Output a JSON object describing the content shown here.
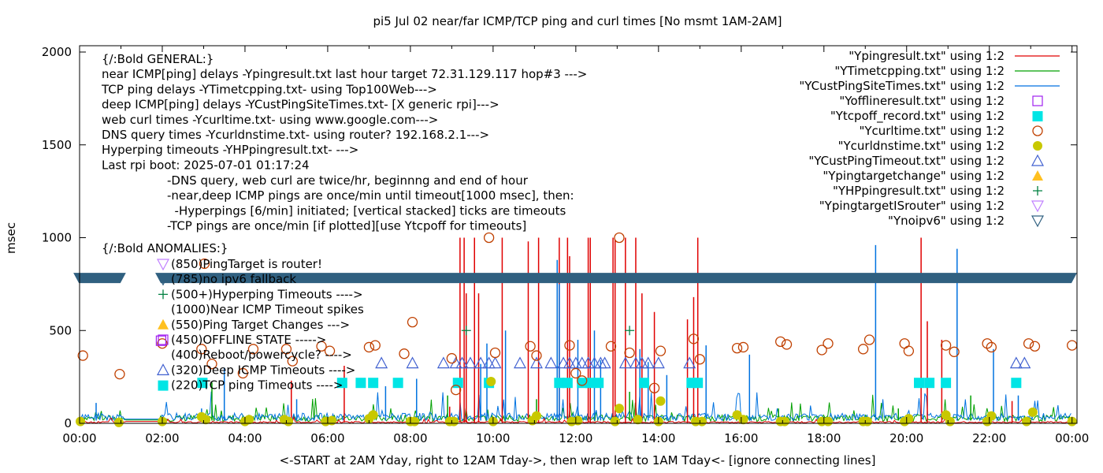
{
  "chart_data": {
    "type": "line",
    "title": "pi5 Jul 02  near/far ICMP/TCP ping and curl times [No msmt 1AM-2AM]",
    "xlabel": "<-START at 2AM Yday, right to 12AM Tday->, then wrap left to 1AM Tday<- [ignore connecting lines]",
    "ylabel": "msec",
    "xlim_hours": [
      0,
      24.12
    ],
    "ylim": [
      0,
      2030
    ],
    "yticks": [
      0,
      500,
      1000,
      1500,
      2000
    ],
    "xticks": [
      {
        "h": 0,
        "label": "00:00"
      },
      {
        "h": 2,
        "label": "02:00"
      },
      {
        "h": 4,
        "label": "04:00"
      },
      {
        "h": 6,
        "label": "06:00"
      },
      {
        "h": 8,
        "label": "08:00"
      },
      {
        "h": 10,
        "label": "10:00"
      },
      {
        "h": 12,
        "label": "12:00"
      },
      {
        "h": 14,
        "label": "14:00"
      },
      {
        "h": 16,
        "label": "16:00"
      },
      {
        "h": 18,
        "label": "18:00"
      },
      {
        "h": 20,
        "label": "20:00"
      },
      {
        "h": 22,
        "label": "22:00"
      },
      {
        "h": 24,
        "label": "00:00"
      }
    ],
    "grid": false,
    "legend_position": "top-right",
    "legend": [
      {
        "label": "\"Ypingresult.txt\" using 1:2",
        "kind": "line",
        "color": "#e00000"
      },
      {
        "label": "\"YTimetcpping.txt\" using 1:2",
        "kind": "line",
        "color": "#00a000"
      },
      {
        "label": "\"YCustPingSiteTimes.txt\" using 1:2",
        "kind": "line",
        "color": "#0072e0"
      },
      {
        "label": "\"Yofflineresult.txt\" using 1:2",
        "kind": "open-square",
        "color": "#a020f0"
      },
      {
        "label": "\"Ytcpoff_record.txt\" using 1:2",
        "kind": "filled-square",
        "color": "#00e5e5"
      },
      {
        "label": "\"Ycurltime.txt\" using 1:2",
        "kind": "open-circle",
        "color": "#c04000"
      },
      {
        "label": "\"Ycurldnstime.txt\" using 1:2",
        "kind": "filled-circle",
        "color": "#c8c800"
      },
      {
        "label": "\"YCustPingTimeout.txt\" using 1:2",
        "kind": "open-triangle-up",
        "color": "#4060d0"
      },
      {
        "label": "\"Ypingtargetchange\" using 1:2",
        "kind": "filled-triangle-up",
        "color": "#ffc020"
      },
      {
        "label": "\"YHPpingresult.txt\" using 1:2",
        "kind": "plus",
        "color": "#008040"
      },
      {
        "label": "\"YpingtargetISrouter\" using 1:2",
        "kind": "open-triangle-down",
        "color": "#c080ff"
      },
      {
        "label": "\"Ynoipv6\" using 1:2",
        "kind": "open-triangle-down",
        "color": "#306080"
      }
    ],
    "annotations": {
      "general": [
        "{/:Bold GENERAL:}",
        "near ICMP[ping] delays -Ypingresult.txt last hour target 72.31.129.117 hop#3 --->",
        "TCP ping delays -YTimetcpping.txt- using Top100Web--->",
        "deep ICMP[ping] delays -YCustPingSiteTimes.txt- [X generic rpi]--->",
        "web curl times -Ycurltime.txt- using www.google.com--->",
        "DNS query times -Ycurldnstime.txt- using router? 192.168.2.1--->",
        "Hyperping timeouts -YHPpingresult.txt- --->",
        "Last rpi boot: 2025-07-01 01:17:24"
      ],
      "notes": [
        "-DNS query, web curl are twice/hr, beginnng and end of hour",
        "-near,deep ICMP pings are once/min until timeout[1000 msec], then:",
        "  -Hyperpings [6/min] initiated; [vertical stacked] ticks are timeouts",
        "-TCP pings are once/min [if plotted][use Ytcpoff for timeouts]"
      ],
      "anomalies_title": "{/:Bold ANOMALIES:}",
      "anomalies": [
        {
          "marker": "open-triangle-down",
          "color": "#c080ff",
          "text": "(850)PingTarget is router!"
        },
        {
          "marker": "open-triangle-down",
          "color": "#306080",
          "text": "(785)no ipv6 fallback"
        },
        {
          "marker": "plus",
          "color": "#008040",
          "text": "(500+)Hyperping Timeouts ---->"
        },
        {
          "marker": "none",
          "color": "#000000",
          "text": "(1000)Near ICMP Timeout spikes"
        },
        {
          "marker": "filled-triangle-up",
          "color": "#ffc020",
          "text": "(550)Ping Target Changes --->"
        },
        {
          "marker": "open-square",
          "color": "#a020f0",
          "text": "(450)OFFLINE STATE ----->"
        },
        {
          "marker": "none",
          "color": "#000000",
          "text": "(400)Reboot/powercycle? ---->"
        },
        {
          "marker": "open-triangle-up",
          "color": "#4060d0",
          "text": "(320)Deep ICMP Timeouts ---->"
        },
        {
          "marker": "filled-square",
          "color": "#00e5e5",
          "text": "(220)TCP ping Timeouts ---->"
        }
      ]
    },
    "series": {
      "noipv6_band": {
        "y": 785,
        "ranges": [
          [
            -0.15,
            1.12
          ],
          [
            1.83,
            24.12
          ]
        ]
      },
      "near_icmp_spikes": [
        {
          "x": 2.83,
          "y": 0
        },
        {
          "x": 5.12,
          "y": 230
        },
        {
          "x": 6.4,
          "y": 310
        },
        {
          "x": 8.95,
          "y": 90
        },
        {
          "x": 9.2,
          "y": 1000
        },
        {
          "x": 9.3,
          "y": 1000
        },
        {
          "x": 9.35,
          "y": 700
        },
        {
          "x": 9.55,
          "y": 1000
        },
        {
          "x": 9.65,
          "y": 700
        },
        {
          "x": 10.22,
          "y": 1000
        },
        {
          "x": 10.85,
          "y": 980
        },
        {
          "x": 11.1,
          "y": 1000
        },
        {
          "x": 11.6,
          "y": 1000
        },
        {
          "x": 11.8,
          "y": 1000
        },
        {
          "x": 11.85,
          "y": 900
        },
        {
          "x": 12.3,
          "y": 1000
        },
        {
          "x": 12.35,
          "y": 1000
        },
        {
          "x": 12.9,
          "y": 1000
        },
        {
          "x": 12.95,
          "y": 990
        },
        {
          "x": 13.2,
          "y": 1000
        },
        {
          "x": 13.45,
          "y": 1000
        },
        {
          "x": 13.6,
          "y": 700
        },
        {
          "x": 13.9,
          "y": 600
        },
        {
          "x": 14.7,
          "y": 560
        },
        {
          "x": 14.85,
          "y": 680
        },
        {
          "x": 14.95,
          "y": 1000
        },
        {
          "x": 20.35,
          "y": 1000
        },
        {
          "x": 20.5,
          "y": 550
        },
        {
          "x": 20.85,
          "y": 450
        },
        {
          "x": 22.55,
          "y": 120
        }
      ],
      "deep_icmp_spikes": [
        {
          "x": 0.4,
          "y": 110
        },
        {
          "x": 2.95,
          "y": 80
        },
        {
          "x": 3.5,
          "y": 300
        },
        {
          "x": 5.25,
          "y": 130
        },
        {
          "x": 7.4,
          "y": 200
        },
        {
          "x": 8.15,
          "y": 240
        },
        {
          "x": 9.7,
          "y": 320
        },
        {
          "x": 9.85,
          "y": 430
        },
        {
          "x": 10.3,
          "y": 500
        },
        {
          "x": 11.55,
          "y": 880
        },
        {
          "x": 11.6,
          "y": 750
        },
        {
          "x": 12.05,
          "y": 450
        },
        {
          "x": 12.45,
          "y": 500
        },
        {
          "x": 12.6,
          "y": 340
        },
        {
          "x": 13.55,
          "y": 400
        },
        {
          "x": 13.75,
          "y": 330
        },
        {
          "x": 14.2,
          "y": 260
        },
        {
          "x": 15.15,
          "y": 420
        },
        {
          "x": 16.2,
          "y": 370
        },
        {
          "x": 19.25,
          "y": 960
        },
        {
          "x": 21.22,
          "y": 940
        },
        {
          "x": 22.1,
          "y": 400
        },
        {
          "x": 22.7,
          "y": 150
        }
      ],
      "tcp_spikes": [
        {
          "x": 3.2,
          "y": 220
        },
        {
          "x": 8.9,
          "y": 150
        },
        {
          "x": 11.05,
          "y": 130
        },
        {
          "x": 13.3,
          "y": 170
        },
        {
          "x": 16.9,
          "y": 80
        },
        {
          "x": 19.8,
          "y": 80
        },
        {
          "x": 21.55,
          "y": 150
        }
      ],
      "yofflineresult": [
        {
          "x": 1.97,
          "y": 445
        }
      ],
      "ytcpoff_record": [
        {
          "x": 2.97,
          "y": 220
        },
        {
          "x": 6.35,
          "y": 220
        },
        {
          "x": 6.8,
          "y": 220
        },
        {
          "x": 7.1,
          "y": 220
        },
        {
          "x": 7.7,
          "y": 220
        },
        {
          "x": 9.15,
          "y": 220
        },
        {
          "x": 9.9,
          "y": 220
        },
        {
          "x": 11.6,
          "y": 220
        },
        {
          "x": 11.8,
          "y": 220
        },
        {
          "x": 12.15,
          "y": 220
        },
        {
          "x": 12.35,
          "y": 220
        },
        {
          "x": 12.55,
          "y": 220
        },
        {
          "x": 13.65,
          "y": 220
        },
        {
          "x": 14.8,
          "y": 220
        },
        {
          "x": 14.95,
          "y": 220
        },
        {
          "x": 20.3,
          "y": 220
        },
        {
          "x": 20.55,
          "y": 220
        },
        {
          "x": 20.95,
          "y": 220
        },
        {
          "x": 22.65,
          "y": 220
        }
      ],
      "ycurltime": [
        {
          "x": 0.08,
          "y": 365
        },
        {
          "x": 0.97,
          "y": 265
        },
        {
          "x": 2.0,
          "y": 430
        },
        {
          "x": 2.95,
          "y": 400
        },
        {
          "x": 3.02,
          "y": 860
        },
        {
          "x": 3.2,
          "y": 320
        },
        {
          "x": 3.95,
          "y": 270
        },
        {
          "x": 4.2,
          "y": 400
        },
        {
          "x": 5.0,
          "y": 400
        },
        {
          "x": 5.15,
          "y": 335
        },
        {
          "x": 5.85,
          "y": 415
        },
        {
          "x": 6.05,
          "y": 390
        },
        {
          "x": 7.0,
          "y": 410
        },
        {
          "x": 7.15,
          "y": 420
        },
        {
          "x": 7.85,
          "y": 375
        },
        {
          "x": 8.05,
          "y": 545
        },
        {
          "x": 9.0,
          "y": 350
        },
        {
          "x": 9.1,
          "y": 180
        },
        {
          "x": 9.9,
          "y": 1000
        },
        {
          "x": 10.05,
          "y": 380
        },
        {
          "x": 10.9,
          "y": 415
        },
        {
          "x": 11.05,
          "y": 365
        },
        {
          "x": 11.85,
          "y": 420
        },
        {
          "x": 12.0,
          "y": 270
        },
        {
          "x": 12.15,
          "y": 230
        },
        {
          "x": 12.85,
          "y": 415
        },
        {
          "x": 13.05,
          "y": 1000
        },
        {
          "x": 13.3,
          "y": 380
        },
        {
          "x": 13.9,
          "y": 190
        },
        {
          "x": 14.05,
          "y": 390
        },
        {
          "x": 14.85,
          "y": 455
        },
        {
          "x": 15.0,
          "y": 345
        },
        {
          "x": 15.9,
          "y": 405
        },
        {
          "x": 16.05,
          "y": 410
        },
        {
          "x": 16.95,
          "y": 440
        },
        {
          "x": 17.1,
          "y": 425
        },
        {
          "x": 17.95,
          "y": 395
        },
        {
          "x": 18.1,
          "y": 430
        },
        {
          "x": 18.95,
          "y": 400
        },
        {
          "x": 19.1,
          "y": 450
        },
        {
          "x": 19.95,
          "y": 430
        },
        {
          "x": 20.05,
          "y": 390
        },
        {
          "x": 20.95,
          "y": 420
        },
        {
          "x": 21.15,
          "y": 385
        },
        {
          "x": 21.95,
          "y": 430
        },
        {
          "x": 22.05,
          "y": 410
        },
        {
          "x": 22.95,
          "y": 430
        },
        {
          "x": 23.1,
          "y": 415
        },
        {
          "x": 24.0,
          "y": 420
        }
      ],
      "ycurldnstime": [
        {
          "x": 0.02,
          "y": 10
        },
        {
          "x": 0.95,
          "y": 5
        },
        {
          "x": 2.0,
          "y": 10
        },
        {
          "x": 2.95,
          "y": 35
        },
        {
          "x": 3.05,
          "y": 20
        },
        {
          "x": 4.0,
          "y": 10
        },
        {
          "x": 4.1,
          "y": 20
        },
        {
          "x": 4.95,
          "y": 20
        },
        {
          "x": 5.05,
          "y": 10
        },
        {
          "x": 5.95,
          "y": 10
        },
        {
          "x": 6.1,
          "y": 15
        },
        {
          "x": 7.0,
          "y": 25
        },
        {
          "x": 7.1,
          "y": 45
        },
        {
          "x": 8.0,
          "y": 10
        },
        {
          "x": 8.1,
          "y": 10
        },
        {
          "x": 8.95,
          "y": 10
        },
        {
          "x": 9.05,
          "y": 10
        },
        {
          "x": 9.95,
          "y": 225
        },
        {
          "x": 10.0,
          "y": 10
        },
        {
          "x": 10.95,
          "y": 15
        },
        {
          "x": 11.05,
          "y": 40
        },
        {
          "x": 11.9,
          "y": 10
        },
        {
          "x": 12.05,
          "y": 15
        },
        {
          "x": 12.95,
          "y": 10
        },
        {
          "x": 13.05,
          "y": 80
        },
        {
          "x": 13.5,
          "y": 20
        },
        {
          "x": 14.0,
          "y": 10
        },
        {
          "x": 14.05,
          "y": 120
        },
        {
          "x": 14.9,
          "y": 10
        },
        {
          "x": 15.05,
          "y": 10
        },
        {
          "x": 15.9,
          "y": 45
        },
        {
          "x": 16.05,
          "y": 20
        },
        {
          "x": 16.95,
          "y": 10
        },
        {
          "x": 17.05,
          "y": 10
        },
        {
          "x": 17.95,
          "y": 10
        },
        {
          "x": 18.1,
          "y": 10
        },
        {
          "x": 18.95,
          "y": 10
        },
        {
          "x": 19.05,
          "y": 10
        },
        {
          "x": 19.95,
          "y": 10
        },
        {
          "x": 20.05,
          "y": 25
        },
        {
          "x": 20.95,
          "y": 45
        },
        {
          "x": 21.05,
          "y": 10
        },
        {
          "x": 21.95,
          "y": 10
        },
        {
          "x": 22.05,
          "y": 40
        },
        {
          "x": 22.9,
          "y": 10
        },
        {
          "x": 23.05,
          "y": 60
        },
        {
          "x": 24.0,
          "y": 10
        }
      ],
      "ycustpingtimeout": [
        {
          "x": 7.3,
          "y": 320
        },
        {
          "x": 8.05,
          "y": 320
        },
        {
          "x": 8.8,
          "y": 320
        },
        {
          "x": 9.1,
          "y": 320
        },
        {
          "x": 9.25,
          "y": 320
        },
        {
          "x": 9.45,
          "y": 320
        },
        {
          "x": 9.7,
          "y": 320
        },
        {
          "x": 9.9,
          "y": 320
        },
        {
          "x": 10.05,
          "y": 320
        },
        {
          "x": 10.65,
          "y": 320
        },
        {
          "x": 11.05,
          "y": 320
        },
        {
          "x": 11.4,
          "y": 320
        },
        {
          "x": 11.7,
          "y": 320
        },
        {
          "x": 11.85,
          "y": 320
        },
        {
          "x": 12.0,
          "y": 320
        },
        {
          "x": 12.15,
          "y": 320
        },
        {
          "x": 12.3,
          "y": 320
        },
        {
          "x": 12.45,
          "y": 320
        },
        {
          "x": 12.6,
          "y": 320
        },
        {
          "x": 12.7,
          "y": 320
        },
        {
          "x": 13.2,
          "y": 320
        },
        {
          "x": 13.45,
          "y": 320
        },
        {
          "x": 13.6,
          "y": 320
        },
        {
          "x": 13.75,
          "y": 320
        },
        {
          "x": 14.0,
          "y": 320
        },
        {
          "x": 14.75,
          "y": 320
        },
        {
          "x": 22.65,
          "y": 320
        },
        {
          "x": 22.85,
          "y": 320
        }
      ],
      "yhppingresult": [
        {
          "x": 9.35,
          "y": 500
        },
        {
          "x": 13.3,
          "y": 500
        }
      ],
      "ypingtargetisrouter": [],
      "ypingtargetchange": []
    }
  }
}
